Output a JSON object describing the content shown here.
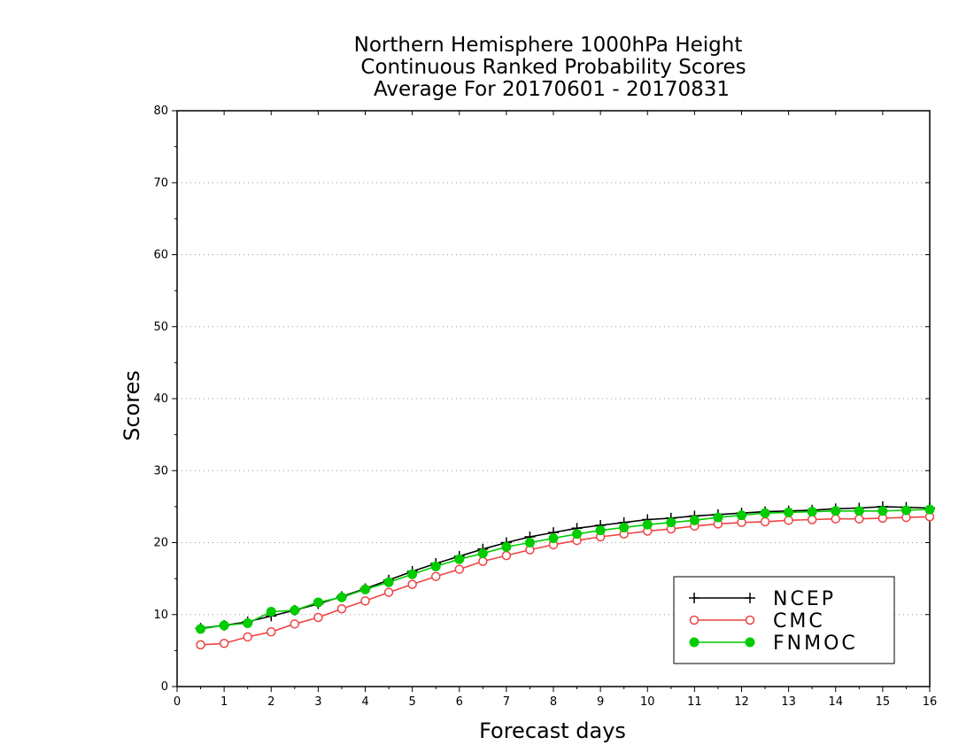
{
  "chart_data": {
    "type": "line",
    "title_lines": [
      "Northern Hemisphere 1000hPa Height",
      "Continuous Ranked Probability Scores",
      "Average For 20170601 - 20170831"
    ],
    "xlabel": "Forecast days",
    "ylabel": "Scores",
    "xlim": [
      0,
      16
    ],
    "ylim": [
      0,
      80
    ],
    "x_ticks": [
      "0",
      "1",
      "2",
      "3",
      "4",
      "5",
      "6",
      "7",
      "8",
      "9",
      "10",
      "11",
      "12",
      "13",
      "14",
      "15",
      "16"
    ],
    "y_ticks": [
      "0",
      "10",
      "20",
      "30",
      "40",
      "50",
      "60",
      "70",
      "80"
    ],
    "grid": "horizontal dotted",
    "legend_position": "bottom-right",
    "x": [
      0.5,
      1,
      1.5,
      2,
      2.5,
      3,
      3.5,
      4,
      4.5,
      5,
      5.5,
      6,
      6.5,
      7,
      7.5,
      8,
      8.5,
      9,
      9.5,
      10,
      10.5,
      11,
      11.5,
      12,
      12.5,
      13,
      13.5,
      14,
      14.5,
      15,
      15.5,
      16
    ],
    "series": [
      {
        "name": "NCEP",
        "color": "#000000",
        "marker": "plus",
        "values": [
          8.1,
          8.5,
          9.0,
          9.8,
          10.6,
          11.5,
          12.5,
          13.6,
          14.8,
          16.0,
          17.1,
          18.1,
          19.1,
          20.0,
          20.8,
          21.4,
          22.0,
          22.4,
          22.8,
          23.2,
          23.4,
          23.7,
          23.9,
          24.1,
          24.3,
          24.4,
          24.5,
          24.7,
          24.8,
          25.0,
          24.9,
          24.8
        ]
      },
      {
        "name": "CMC",
        "color": "#ee4444",
        "marker": "open-circle",
        "values": [
          5.8,
          6.0,
          6.9,
          7.6,
          8.7,
          9.6,
          10.8,
          11.9,
          13.1,
          14.2,
          15.3,
          16.3,
          17.4,
          18.2,
          19.0,
          19.7,
          20.3,
          20.8,
          21.2,
          21.6,
          21.9,
          22.3,
          22.6,
          22.8,
          22.9,
          23.1,
          23.2,
          23.3,
          23.3,
          23.4,
          23.5,
          23.6
        ]
      },
      {
        "name": "FNMOC",
        "color": "#00cc00",
        "marker": "filled-circle",
        "values": [
          8.0,
          8.5,
          8.8,
          10.4,
          10.6,
          11.7,
          12.4,
          13.5,
          14.5,
          15.6,
          16.7,
          17.7,
          18.5,
          19.4,
          20.0,
          20.6,
          21.2,
          21.7,
          22.1,
          22.5,
          22.8,
          23.1,
          23.5,
          23.8,
          24.1,
          24.2,
          24.3,
          24.4,
          24.4,
          24.4,
          24.5,
          24.6
        ]
      }
    ]
  }
}
